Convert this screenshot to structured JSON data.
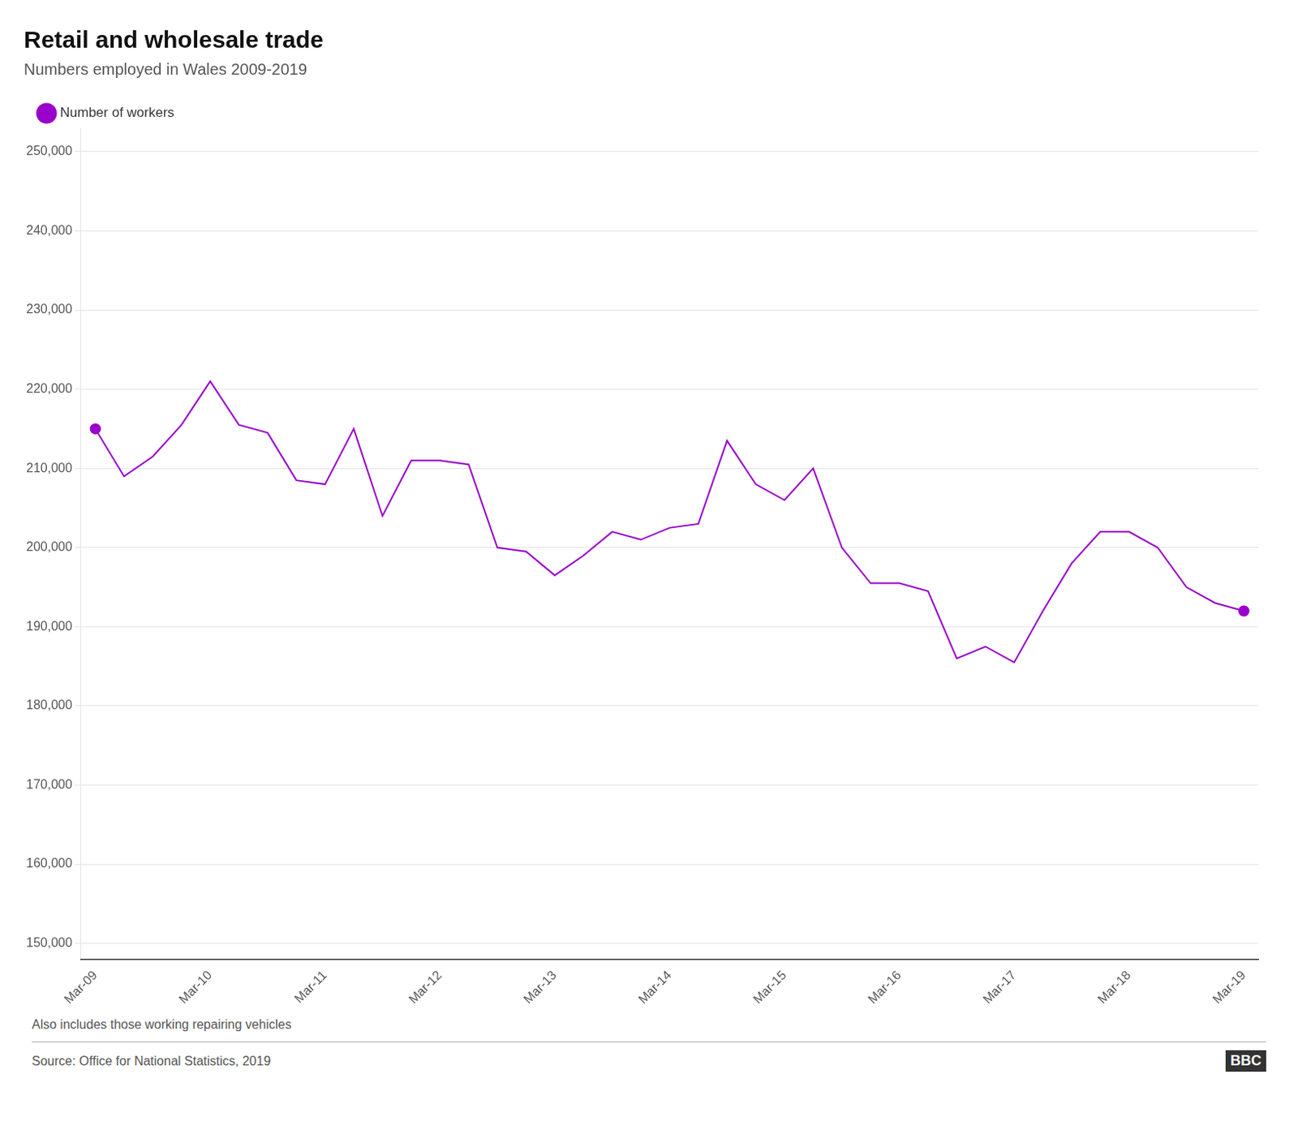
{
  "chart_data": {
    "type": "line",
    "title": "Retail and wholesale trade",
    "subtitle": "Numbers employed in Wales 2009-2019",
    "footnote": "Also includes those working repairing vehicles",
    "source": "Source: Office for National Statistics, 2019",
    "logo": "BBC",
    "categories": [
      "Mar-09",
      null,
      null,
      null,
      "Mar-10",
      null,
      null,
      null,
      "Mar-11",
      null,
      null,
      null,
      "Mar-12",
      null,
      null,
      null,
      "Mar-13",
      null,
      null,
      null,
      "Mar-14",
      null,
      null,
      null,
      "Mar-15",
      null,
      null,
      null,
      "Mar-16",
      null,
      null,
      null,
      "Mar-17",
      null,
      null,
      null,
      "Mar-18",
      null,
      null,
      null,
      "Mar-19"
    ],
    "series": [
      {
        "name": "Number of workers",
        "color": "#9900cc",
        "marker": "endpoints",
        "values": [
          215000,
          209000,
          211500,
          215500,
          221000,
          215500,
          214500,
          208500,
          208000,
          215000,
          204000,
          211000,
          211000,
          210500,
          200000,
          199500,
          196500,
          199000,
          202000,
          201000,
          202500,
          203000,
          213500,
          208000,
          206000,
          210000,
          200000,
          195500,
          195500,
          194500,
          186000,
          187500,
          185500,
          192000,
          198000,
          202000,
          202000,
          200000,
          195000,
          193000,
          192000
        ]
      }
    ],
    "ylim": [
      148000,
      253000
    ],
    "yticks": [
      {
        "value": 150000,
        "label": "150,000"
      },
      {
        "value": 160000,
        "label": "160,000"
      },
      {
        "value": 170000,
        "label": "170,000"
      },
      {
        "value": 180000,
        "label": "180,000"
      },
      {
        "value": 190000,
        "label": "190,000"
      },
      {
        "value": 200000,
        "label": "200,000"
      },
      {
        "value": 210000,
        "label": "210,000"
      },
      {
        "value": 220000,
        "label": "220,000"
      },
      {
        "value": 230000,
        "label": "230,000"
      },
      {
        "value": 240000,
        "label": "240,000"
      },
      {
        "value": 250000,
        "label": "250,000"
      }
    ],
    "grid": true,
    "legend": "top-left"
  }
}
